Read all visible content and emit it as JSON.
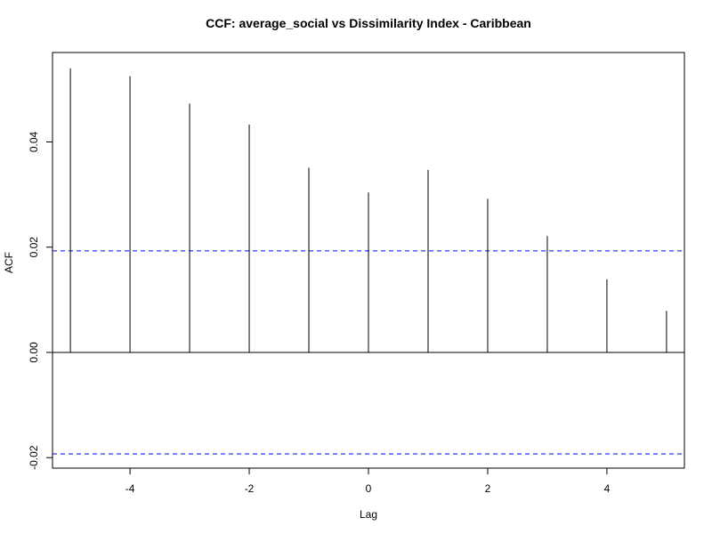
{
  "chart_data": {
    "type": "bar",
    "title": "CCF: average_social vs Dissimilarity Index - Caribbean",
    "xlabel": "Lag",
    "ylabel": "ACF",
    "x": [
      -5,
      -4,
      -3,
      -2,
      -1,
      0,
      1,
      2,
      3,
      4,
      5
    ],
    "values": [
      0.054,
      0.0525,
      0.0473,
      0.0433,
      0.0351,
      0.0304,
      0.0347,
      0.0292,
      0.0221,
      0.0139,
      0.0079
    ],
    "xlim": [
      -5.3,
      5.3
    ],
    "ylim": [
      -0.022,
      0.057
    ],
    "x_ticks": [
      -4,
      -2,
      0,
      2,
      4
    ],
    "x_tick_labels": [
      "-4",
      "-2",
      "0",
      "2",
      "4"
    ],
    "y_ticks": [
      -0.02,
      0.0,
      0.02,
      0.04
    ],
    "y_tick_labels": [
      "-0.02",
      "0.00",
      "0.02",
      "0.04"
    ],
    "confidence_band": 0.0193,
    "zero_line": true,
    "grid": false,
    "colors": {
      "bars": "#000000",
      "confidence": "#0000ff",
      "axis": "#000000"
    }
  }
}
